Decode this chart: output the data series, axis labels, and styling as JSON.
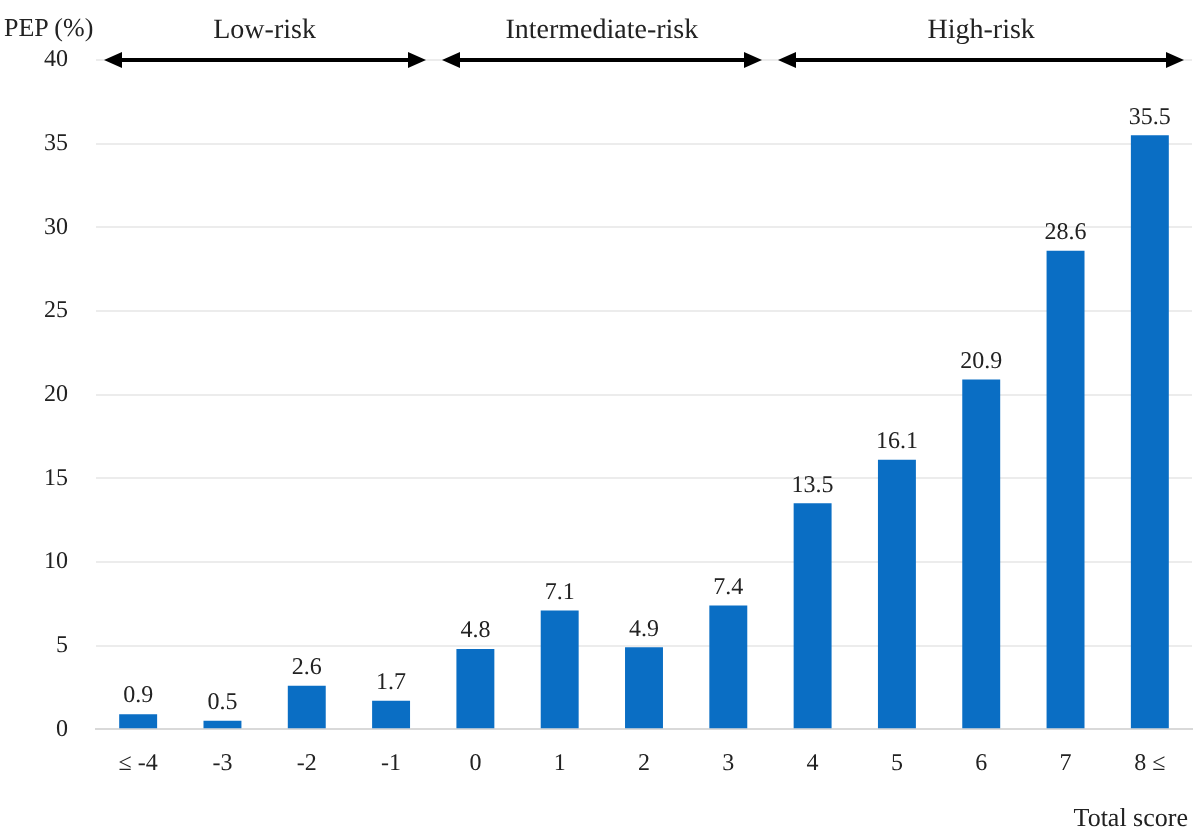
{
  "chart_data": {
    "type": "bar",
    "xlabel": "Total score",
    "ylabel": "PEP (%)",
    "categories": [
      "≤ -4",
      "-3",
      "-2",
      "-1",
      "0",
      "1",
      "2",
      "3",
      "4",
      "5",
      "6",
      "7",
      "8 ≤"
    ],
    "values": [
      0.9,
      0.5,
      2.6,
      1.7,
      4.8,
      7.1,
      4.9,
      7.4,
      13.5,
      16.1,
      20.9,
      28.6,
      35.5
    ],
    "color": "#0a6ec4",
    "ylim": [
      0,
      40
    ],
    "yticks": [
      0,
      5,
      10,
      15,
      20,
      25,
      30,
      35,
      40
    ],
    "grid": "y",
    "legend": false,
    "data_labels": true,
    "annotations": [
      "Low-risk",
      "Intermediate-risk",
      "High-risk"
    ]
  }
}
